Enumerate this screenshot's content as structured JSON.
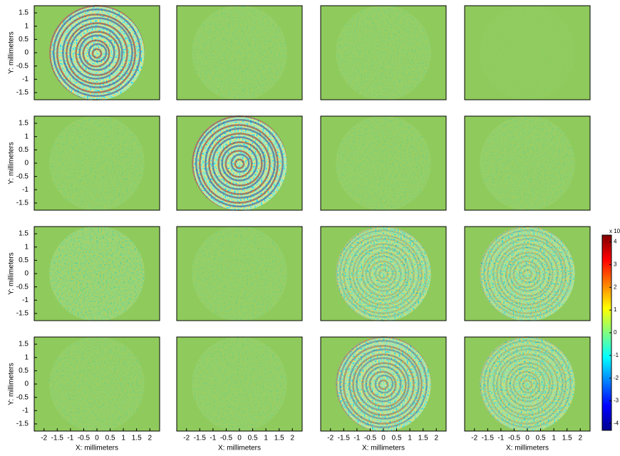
{
  "chart_data": [
    {
      "type": "heatmap",
      "xlim": [
        -2.37,
        2.37
      ],
      "ylim": [
        -1.77,
        1.77
      ],
      "yticks": [
        -1.5,
        -1,
        -0.5,
        0,
        0.5,
        1,
        1.5
      ],
      "ylabel": "Y: millimeters"
    },
    {
      "type": "heatmap",
      "xlim": [
        -2.37,
        2.37
      ],
      "ylim": [
        -1.77,
        1.77
      ]
    },
    {
      "type": "heatmap",
      "xlim": [
        -2.37,
        2.37
      ],
      "ylim": [
        -1.77,
        1.77
      ]
    },
    {
      "type": "heatmap",
      "xlim": [
        -2.37,
        2.37
      ],
      "ylim": [
        -1.77,
        1.77
      ]
    },
    {
      "type": "heatmap",
      "xlim": [
        -2.37,
        2.37
      ],
      "ylim": [
        -1.77,
        1.77
      ],
      "yticks": [
        -1.5,
        -1,
        -0.5,
        0,
        0.5,
        1,
        1.5
      ],
      "ylabel": "Y: millimeters"
    },
    {
      "type": "heatmap",
      "xlim": [
        -2.37,
        2.37
      ],
      "ylim": [
        -1.77,
        1.77
      ]
    },
    {
      "type": "heatmap",
      "xlim": [
        -2.37,
        2.37
      ],
      "ylim": [
        -1.77,
        1.77
      ]
    },
    {
      "type": "heatmap",
      "xlim": [
        -2.37,
        2.37
      ],
      "ylim": [
        -1.77,
        1.77
      ]
    },
    {
      "type": "heatmap",
      "xlim": [
        -2.37,
        2.37
      ],
      "ylim": [
        -1.77,
        1.77
      ],
      "yticks": [
        -1.5,
        -1,
        -0.5,
        0,
        0.5,
        1,
        1.5
      ],
      "ylabel": "Y: millimeters"
    },
    {
      "type": "heatmap",
      "xlim": [
        -2.37,
        2.37
      ],
      "ylim": [
        -1.77,
        1.77
      ]
    },
    {
      "type": "heatmap",
      "xlim": [
        -2.37,
        2.37
      ],
      "ylim": [
        -1.77,
        1.77
      ]
    },
    {
      "type": "heatmap",
      "xlim": [
        -2.37,
        2.37
      ],
      "ylim": [
        -1.77,
        1.77
      ]
    },
    {
      "type": "heatmap",
      "xlim": [
        -2.37,
        2.37
      ],
      "ylim": [
        -1.77,
        1.77
      ],
      "xticks": [
        -2,
        -1.5,
        -1,
        -0.5,
        0,
        0.5,
        1,
        1.5,
        2
      ],
      "yticks": [
        -1.5,
        -1,
        -0.5,
        0,
        0.5,
        1,
        1.5
      ],
      "xlabel": "X: millimeters",
      "ylabel": "Y: millimeters"
    },
    {
      "type": "heatmap",
      "xlim": [
        -2.37,
        2.37
      ],
      "ylim": [
        -1.77,
        1.77
      ],
      "xticks": [
        -2,
        -1.5,
        -1,
        -0.5,
        0,
        0.5,
        1,
        1.5,
        2
      ],
      "xlabel": "X: millimeters"
    },
    {
      "type": "heatmap",
      "xlim": [
        -2.37,
        2.37
      ],
      "ylim": [
        -1.77,
        1.77
      ],
      "xticks": [
        -2,
        -1.5,
        -1,
        -0.5,
        0,
        0.5,
        1,
        1.5,
        2
      ],
      "xlabel": "X: millimeters"
    },
    {
      "type": "heatmap",
      "xlim": [
        -2.37,
        2.37
      ],
      "ylim": [
        -1.77,
        1.77
      ],
      "xticks": [
        -2,
        -1.5,
        -1,
        -0.5,
        0,
        0.5,
        1,
        1.5,
        2
      ],
      "xlabel": "X: millimeters"
    },
    {
      "type": "colorbar",
      "ylim": [
        -4.3,
        4.3
      ],
      "yticks": [
        -4,
        -3,
        -2,
        -1,
        0,
        1,
        2,
        3,
        4
      ],
      "label": "x 10"
    }
  ]
}
